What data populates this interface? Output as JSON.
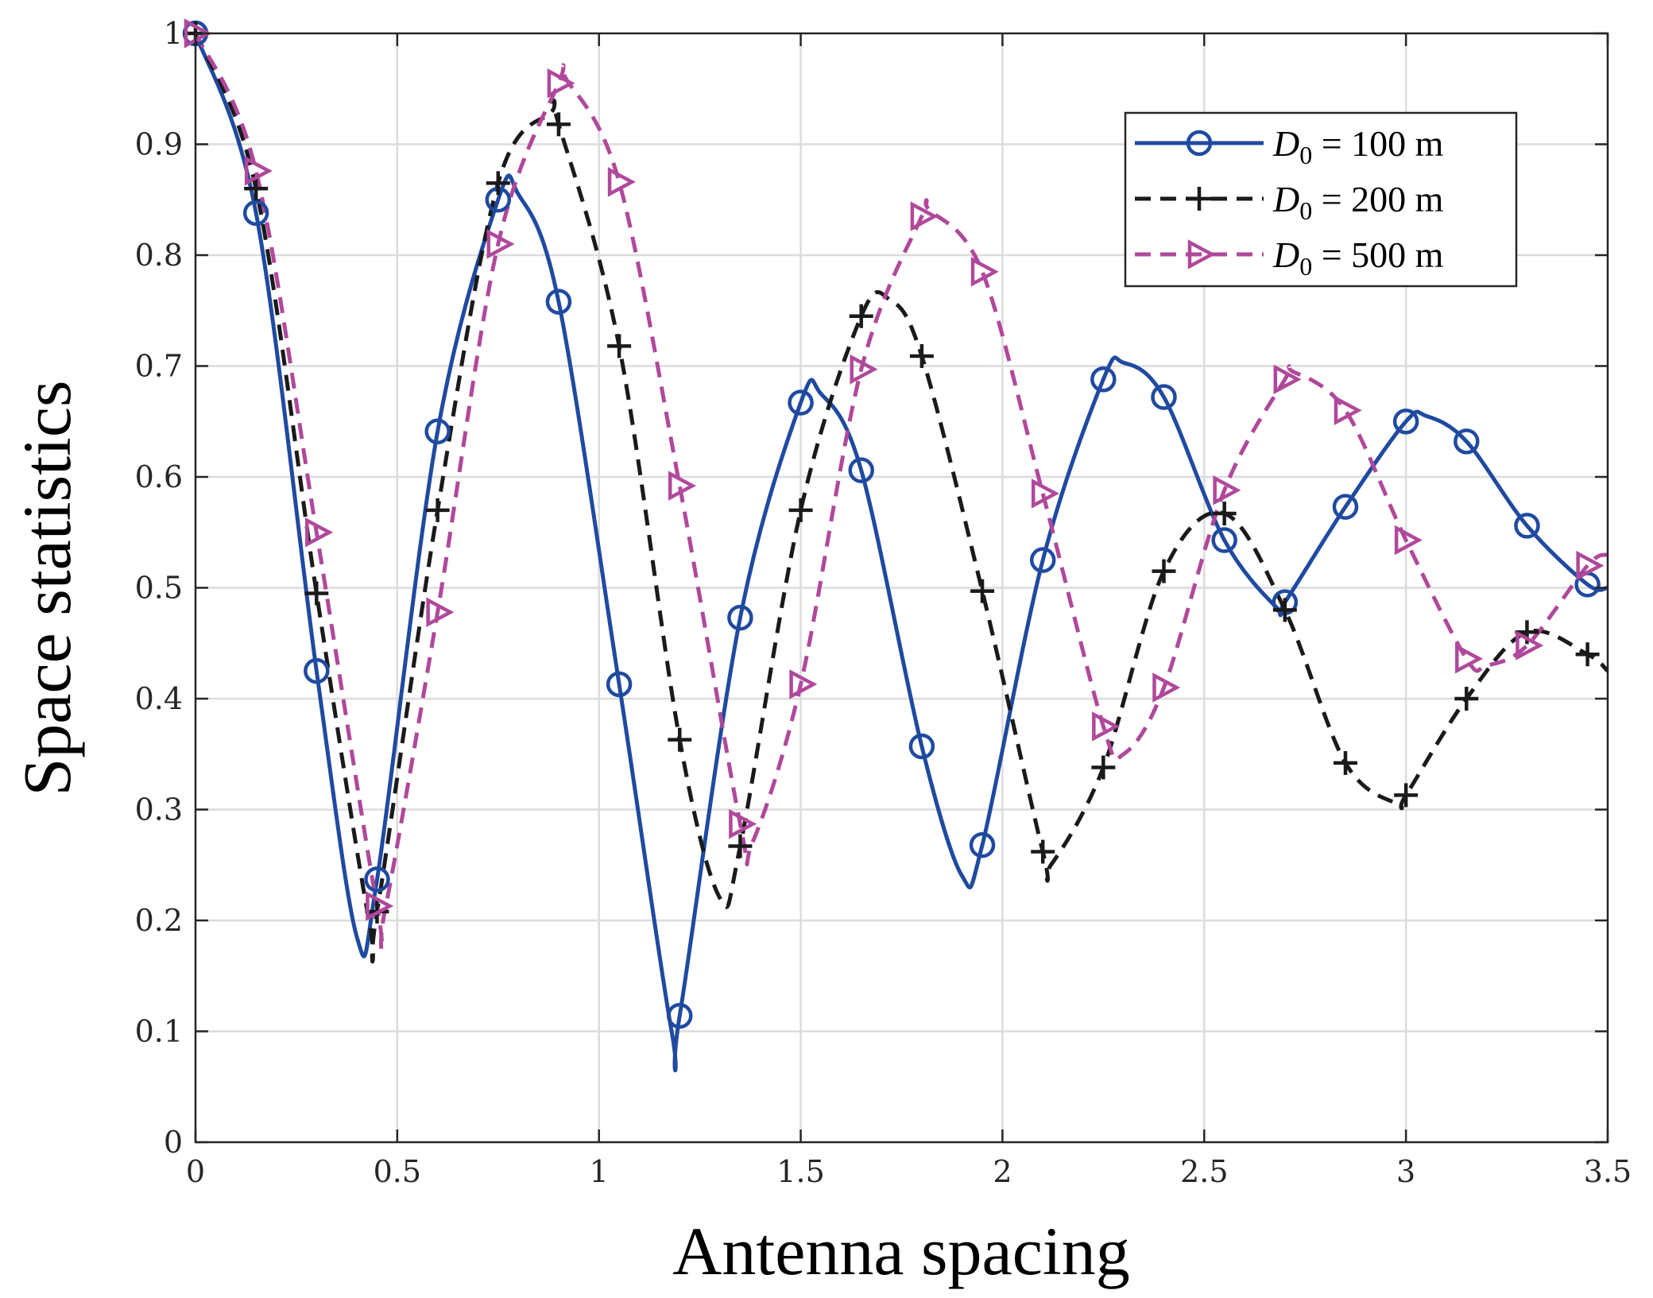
{
  "chart_data": {
    "type": "line",
    "title": "",
    "xlabel": "Antenna spacing",
    "ylabel": "Space statistics",
    "xlim": [
      0,
      3.5
    ],
    "ylim": [
      0,
      1
    ],
    "xticks": [
      0,
      0.5,
      1,
      1.5,
      2,
      2.5,
      3,
      3.5
    ],
    "xtick_labels": [
      "0",
      "0.5",
      "1",
      "1.5",
      "2",
      "2.5",
      "3",
      "3.5"
    ],
    "yticks": [
      0,
      0.1,
      0.2,
      0.3,
      0.4,
      0.5,
      0.6,
      0.7,
      0.8,
      0.9,
      1
    ],
    "ytick_labels": [
      "0",
      "0.1",
      "0.2",
      "0.3",
      "0.4",
      "0.5",
      "0.6",
      "0.7",
      "0.8",
      "0.9",
      "1"
    ],
    "grid": true,
    "legend_position": "top-right",
    "series": [
      {
        "name": "D0 = 100 m",
        "label_var": "D",
        "label_sub": "0",
        "label_rest": " = 100 m",
        "color": "#1f4aa0",
        "dash": "solid",
        "marker": "circle",
        "x": [
          0,
          0.15,
          0.3,
          0.4,
          0.45,
          0.6,
          0.75,
          0.8,
          0.9,
          1.05,
          1.18,
          1.2,
          1.35,
          1.5,
          1.55,
          1.65,
          1.8,
          1.9,
          1.95,
          2.1,
          2.25,
          2.3,
          2.4,
          2.55,
          2.68,
          2.7,
          2.85,
          3.0,
          3.05,
          3.15,
          3.3,
          3.45,
          3.5
        ],
        "y": [
          1.0,
          0.838,
          0.425,
          0.185,
          0.237,
          0.641,
          0.85,
          0.855,
          0.758,
          0.413,
          0.1,
          0.114,
          0.473,
          0.667,
          0.675,
          0.606,
          0.357,
          0.24,
          0.268,
          0.525,
          0.688,
          0.703,
          0.672,
          0.543,
          0.482,
          0.487,
          0.573,
          0.65,
          0.655,
          0.632,
          0.556,
          0.503,
          0.5
        ],
        "marker_x": [
          0,
          0.15,
          0.3,
          0.45,
          0.6,
          0.75,
          0.9,
          1.05,
          1.2,
          1.35,
          1.5,
          1.65,
          1.8,
          1.95,
          2.1,
          2.25,
          2.4,
          2.55,
          2.7,
          2.85,
          3.0,
          3.15,
          3.3,
          3.45
        ],
        "marker_y": [
          1.0,
          0.838,
          0.425,
          0.237,
          0.641,
          0.85,
          0.758,
          0.413,
          0.114,
          0.473,
          0.667,
          0.606,
          0.357,
          0.268,
          0.525,
          0.688,
          0.672,
          0.543,
          0.487,
          0.573,
          0.65,
          0.632,
          0.556,
          0.503
        ]
      },
      {
        "name": "D0 = 200 m",
        "label_var": "D",
        "label_sub": "0",
        "label_rest": " = 200 m",
        "color": "#1a1a1a",
        "dash": "dashed",
        "marker": "plus",
        "x": [
          0,
          0.15,
          0.3,
          0.43,
          0.45,
          0.6,
          0.75,
          0.88,
          0.9,
          1.05,
          1.2,
          1.3,
          1.35,
          1.5,
          1.65,
          1.72,
          1.8,
          1.95,
          2.1,
          2.12,
          2.25,
          2.4,
          2.55,
          2.7,
          2.85,
          2.98,
          3.0,
          3.15,
          3.3,
          3.45,
          3.5
        ],
        "y": [
          1.0,
          0.86,
          0.495,
          0.2,
          0.208,
          0.57,
          0.865,
          0.928,
          0.918,
          0.718,
          0.363,
          0.22,
          0.267,
          0.57,
          0.745,
          0.76,
          0.709,
          0.497,
          0.262,
          0.25,
          0.338,
          0.515,
          0.567,
          0.48,
          0.342,
          0.305,
          0.313,
          0.4,
          0.46,
          0.44,
          0.425
        ],
        "marker_x": [
          0,
          0.15,
          0.3,
          0.45,
          0.6,
          0.75,
          0.9,
          1.05,
          1.2,
          1.35,
          1.5,
          1.65,
          1.8,
          1.95,
          2.1,
          2.25,
          2.4,
          2.55,
          2.7,
          2.85,
          3.0,
          3.15,
          3.3,
          3.45
        ],
        "marker_y": [
          1.0,
          0.86,
          0.495,
          0.208,
          0.57,
          0.865,
          0.918,
          0.718,
          0.363,
          0.267,
          0.57,
          0.745,
          0.709,
          0.497,
          0.262,
          0.338,
          0.515,
          0.567,
          0.48,
          0.342,
          0.313,
          0.4,
          0.46,
          0.44
        ]
      },
      {
        "name": "D0 = 500 m",
        "label_var": "D",
        "label_sub": "0",
        "label_rest": " = 500 m",
        "color": "#b0489b",
        "dash": "dashed",
        "marker": "triangle-right",
        "x": [
          0,
          0.15,
          0.3,
          0.45,
          0.47,
          0.6,
          0.75,
          0.9,
          0.92,
          1.05,
          1.2,
          1.35,
          1.38,
          1.5,
          1.65,
          1.8,
          1.82,
          1.95,
          2.1,
          2.25,
          2.3,
          2.4,
          2.55,
          2.7,
          2.72,
          2.85,
          3.0,
          3.15,
          3.2,
          3.3,
          3.45,
          3.5
        ],
        "y": [
          1.0,
          0.876,
          0.55,
          0.213,
          0.21,
          0.478,
          0.81,
          0.955,
          0.958,
          0.866,
          0.592,
          0.287,
          0.27,
          0.413,
          0.697,
          0.835,
          0.84,
          0.785,
          0.585,
          0.375,
          0.35,
          0.41,
          0.588,
          0.688,
          0.695,
          0.66,
          0.543,
          0.436,
          0.43,
          0.448,
          0.52,
          0.53
        ],
        "marker_x": [
          0,
          0.15,
          0.3,
          0.45,
          0.6,
          0.75,
          0.9,
          1.05,
          1.2,
          1.35,
          1.5,
          1.65,
          1.8,
          1.95,
          2.1,
          2.25,
          2.4,
          2.55,
          2.7,
          2.85,
          3.0,
          3.15,
          3.3,
          3.45
        ],
        "marker_y": [
          1.0,
          0.876,
          0.55,
          0.213,
          0.478,
          0.81,
          0.955,
          0.866,
          0.592,
          0.287,
          0.413,
          0.697,
          0.835,
          0.785,
          0.585,
          0.375,
          0.41,
          0.588,
          0.688,
          0.66,
          0.543,
          0.436,
          0.448,
          0.52
        ]
      }
    ]
  }
}
